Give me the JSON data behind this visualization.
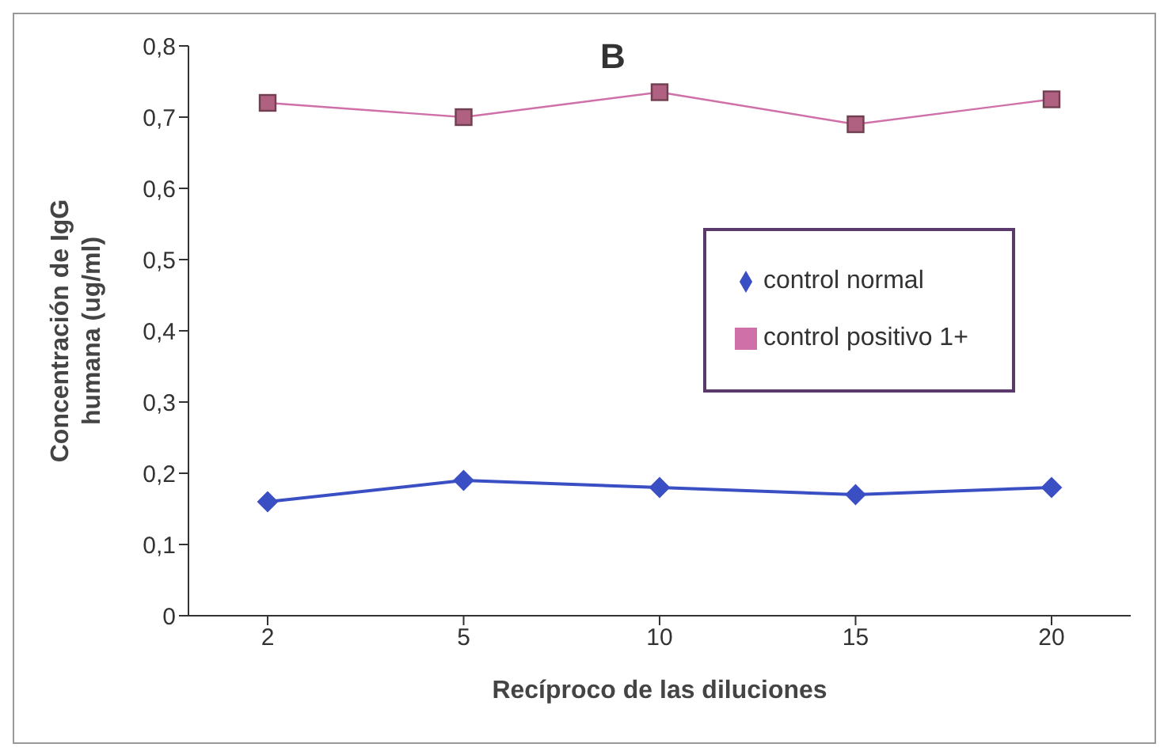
{
  "chart_data": {
    "type": "line",
    "title": "B",
    "xlabel": "Recíproco de las diluciones",
    "ylabel": "Concentración de IgG humana (ug/ml)",
    "categories": [
      "2",
      "5",
      "10",
      "15",
      "20"
    ],
    "series": [
      {
        "name": "control normal",
        "color": "#3b4fc4",
        "values": [
          0.16,
          0.19,
          0.18,
          0.17,
          0.18
        ],
        "marker": "diamond"
      },
      {
        "name": "control positivo 1+",
        "color": "#d070a8",
        "values": [
          0.72,
          0.7,
          0.735,
          0.69,
          0.725
        ],
        "marker": "square"
      }
    ],
    "ylim": [
      0,
      0.8
    ],
    "yticks": [
      0,
      {
        "value": 0.1,
        "label": "0,1"
      },
      {
        "value": 0.2,
        "label": "0,2"
      },
      {
        "value": 0.3,
        "label": "0,3"
      },
      {
        "value": 0.4,
        "label": "0,4"
      },
      {
        "value": 0.5,
        "label": "0,5"
      },
      {
        "value": 0.6,
        "label": "0,6"
      },
      {
        "value": 0.7,
        "label": "0,7"
      },
      {
        "value": 0.8,
        "label": "0,8"
      }
    ],
    "legend": "right",
    "grid": false
  }
}
